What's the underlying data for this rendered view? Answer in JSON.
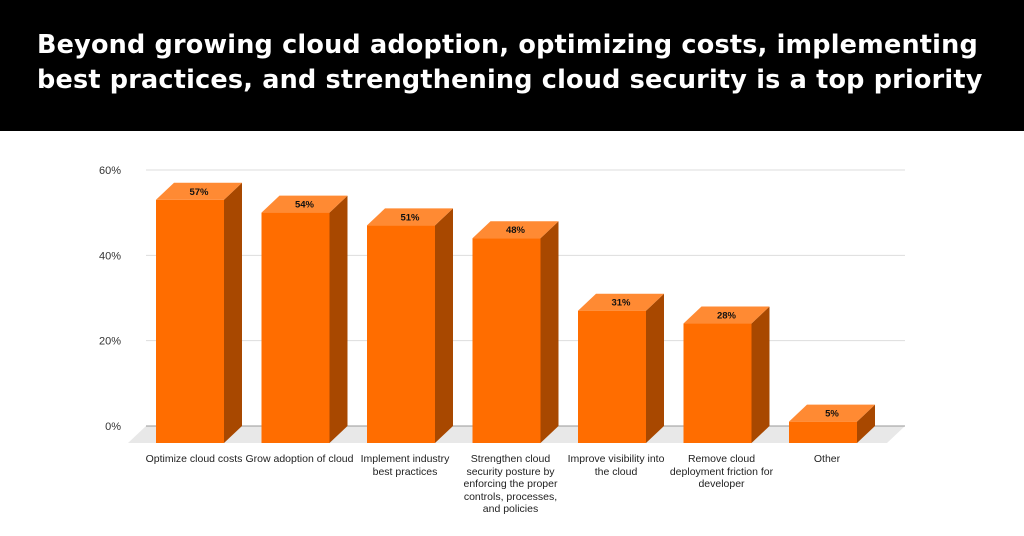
{
  "header": {
    "title": "Beyond growing cloud adoption, optimizing costs, implementing best practices, and strengthening cloud security is a top priority"
  },
  "chart_data": {
    "type": "bar",
    "style": "3d",
    "categories": [
      "Optimize cloud costs",
      "Grow adoption of cloud",
      "Implement industry best practices",
      "Strengthen cloud security posture by enforcing the proper controls, processes, and policies",
      "Improve visibility into the cloud",
      "Remove cloud deployment friction for developer",
      "Other"
    ],
    "values": [
      57,
      54,
      51,
      48,
      31,
      28,
      5
    ],
    "data_labels": [
      "57%",
      "54%",
      "51%",
      "48%",
      "31%",
      "28%",
      "5%"
    ],
    "yticks": [
      "0%",
      "20%",
      "40%",
      "60%"
    ],
    "ylim": [
      0,
      60
    ],
    "grid": true,
    "legend": "none",
    "colors": {
      "front": "#ff6d00",
      "top": "#ff8a33",
      "side": "#a84800",
      "floor": "#e8e8e8"
    }
  }
}
